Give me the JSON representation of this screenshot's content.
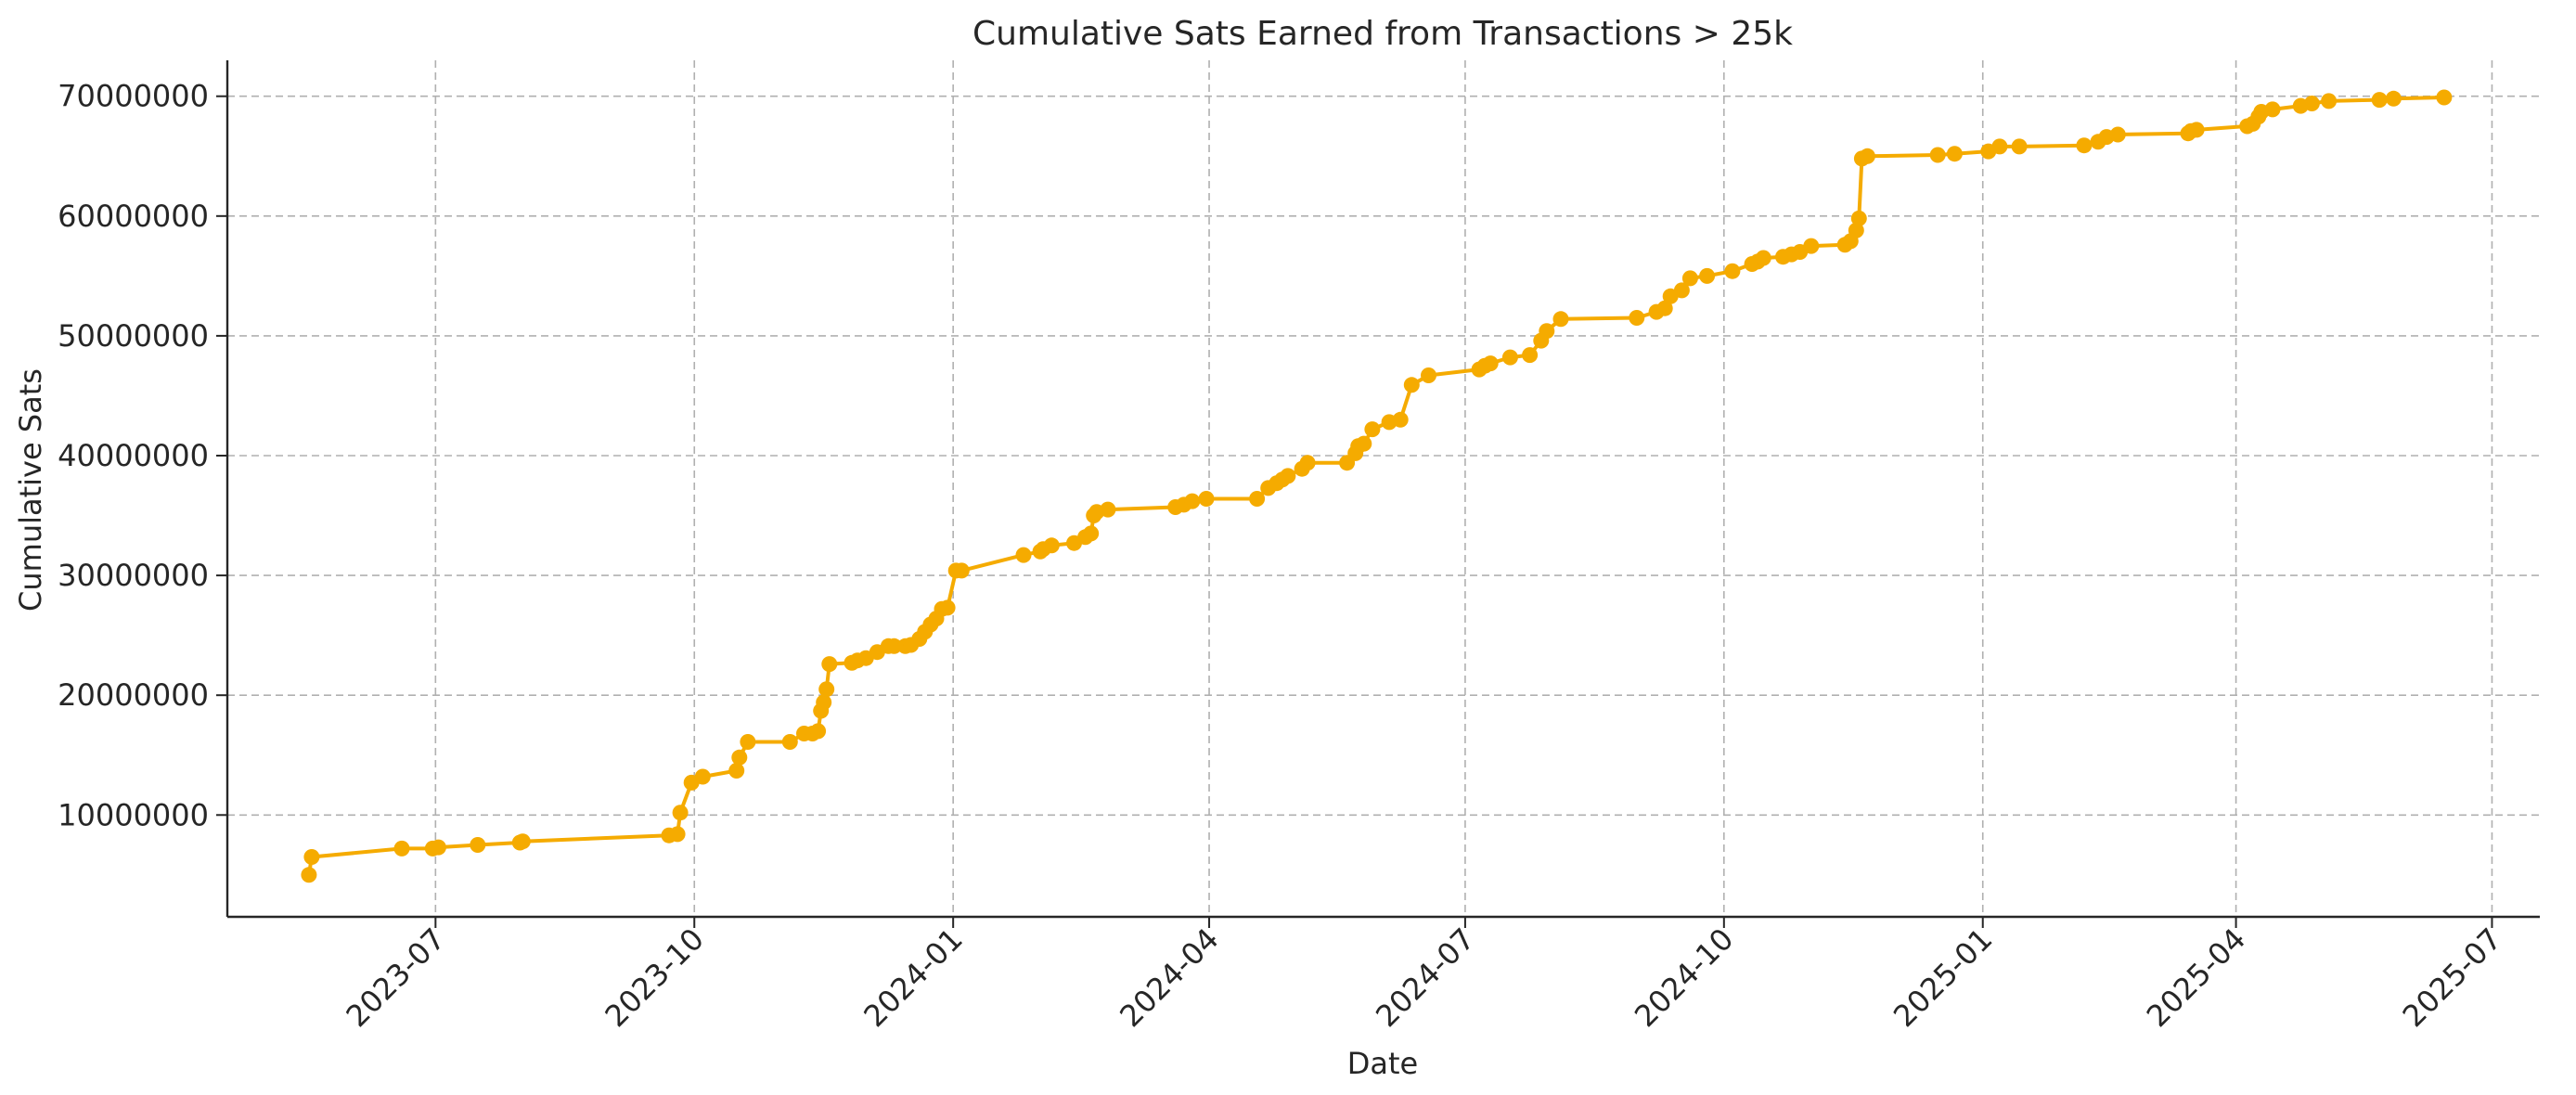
{
  "chart_data": {
    "type": "line",
    "title": "Cumulative Sats Earned from Transactions > 25k",
    "xlabel": "Date",
    "ylabel": "Cumulative Sats",
    "x_ticks": [
      "2023-07",
      "2023-10",
      "2024-01",
      "2024-04",
      "2024-07",
      "2024-10",
      "2025-01",
      "2025-04",
      "2025-07"
    ],
    "y_ticks": [
      10000000,
      20000000,
      30000000,
      40000000,
      50000000,
      60000000,
      70000000
    ],
    "xlim": [
      "2023-04-18",
      "2025-07-18"
    ],
    "ylim": [
      1500000,
      73000000
    ],
    "grid": true,
    "color": "#f5ab00",
    "series": [
      {
        "x": [
          "2023-05-17",
          "2023-05-18",
          "2023-06-19",
          "2023-06-30",
          "2023-07-02",
          "2023-07-16",
          "2023-07-31",
          "2023-08-01",
          "2023-09-22",
          "2023-09-25",
          "2023-09-26",
          "2023-09-30",
          "2023-10-04",
          "2023-10-16",
          "2023-10-17",
          "2023-10-20",
          "2023-11-04",
          "2023-11-09",
          "2023-11-12",
          "2023-11-14",
          "2023-11-15",
          "2023-11-16",
          "2023-11-17",
          "2023-11-18",
          "2023-11-26",
          "2023-11-28",
          "2023-12-01",
          "2023-12-05",
          "2023-12-09",
          "2023-12-11",
          "2023-12-15",
          "2023-12-17",
          "2023-12-20",
          "2023-12-22",
          "2023-12-24",
          "2023-12-26",
          "2023-12-28",
          "2023-12-30",
          "2024-01-02",
          "2024-01-04",
          "2024-01-26",
          "2024-02-01",
          "2024-02-02",
          "2024-02-05",
          "2024-02-13",
          "2024-02-17",
          "2024-02-19",
          "2024-02-20",
          "2024-02-21",
          "2024-02-25",
          "2024-03-20",
          "2024-03-23",
          "2024-03-26",
          "2024-03-31",
          "2024-04-18",
          "2024-04-22",
          "2024-04-25",
          "2024-04-27",
          "2024-04-29",
          "2024-05-04",
          "2024-05-06",
          "2024-05-20",
          "2024-05-23",
          "2024-05-24",
          "2024-05-26",
          "2024-05-29",
          "2024-06-04",
          "2024-06-08",
          "2024-06-12",
          "2024-06-18",
          "2024-07-06",
          "2024-07-08",
          "2024-07-10",
          "2024-07-17",
          "2024-07-24",
          "2024-07-28",
          "2024-07-30",
          "2024-08-04",
          "2024-08-31",
          "2024-09-07",
          "2024-09-10",
          "2024-09-12",
          "2024-09-16",
          "2024-09-19",
          "2024-09-25",
          "2024-10-04",
          "2024-10-11",
          "2024-10-13",
          "2024-10-15",
          "2024-10-22",
          "2024-10-25",
          "2024-10-28",
          "2024-11-01",
          "2024-11-13",
          "2024-11-15",
          "2024-11-17",
          "2024-11-18",
          "2024-11-19",
          "2024-11-21",
          "2024-12-16",
          "2024-12-22",
          "2025-01-03",
          "2025-01-07",
          "2025-01-14",
          "2025-02-06",
          "2025-02-11",
          "2025-02-14",
          "2025-02-18",
          "2025-03-15",
          "2025-03-16",
          "2025-03-18",
          "2025-04-05",
          "2025-04-07",
          "2025-04-09",
          "2025-04-10",
          "2025-04-14",
          "2025-04-24",
          "2025-04-28",
          "2025-05-04",
          "2025-05-22",
          "2025-05-27",
          "2025-06-14"
        ],
        "y": [
          5000000,
          6500000,
          7200000,
          7200000,
          7300000,
          7500000,
          7700000,
          7800000,
          8300000,
          8400000,
          10200000,
          12700000,
          13200000,
          13700000,
          14800000,
          16100000,
          16100000,
          16800000,
          16800000,
          17000000,
          18700000,
          19400000,
          20500000,
          22600000,
          22700000,
          22900000,
          23100000,
          23600000,
          24100000,
          24100000,
          24100000,
          24200000,
          24700000,
          25300000,
          25900000,
          26400000,
          27200000,
          27300000,
          30400000,
          30400000,
          31700000,
          32000000,
          32200000,
          32500000,
          32700000,
          33200000,
          33500000,
          35000000,
          35300000,
          35500000,
          35700000,
          35900000,
          36200000,
          36400000,
          36400000,
          37300000,
          37700000,
          38000000,
          38300000,
          38900000,
          39400000,
          39400000,
          40200000,
          40800000,
          41000000,
          42200000,
          42800000,
          43000000,
          45900000,
          46700000,
          47200000,
          47500000,
          47700000,
          48200000,
          48400000,
          49600000,
          50400000,
          51400000,
          51500000,
          52000000,
          52300000,
          53300000,
          53800000,
          54800000,
          55000000,
          55400000,
          56000000,
          56200000,
          56500000,
          56600000,
          56800000,
          57000000,
          57500000,
          57600000,
          57900000,
          58800000,
          59800000,
          64800000,
          65000000,
          65100000,
          65200000,
          65400000,
          65800000,
          65800000,
          65900000,
          66200000,
          66600000,
          66800000,
          66900000,
          67100000,
          67200000,
          67500000,
          67700000,
          68300000,
          68700000,
          68900000,
          69200000,
          69400000,
          69600000,
          69700000,
          69800000,
          69900000
        ]
      }
    ]
  }
}
